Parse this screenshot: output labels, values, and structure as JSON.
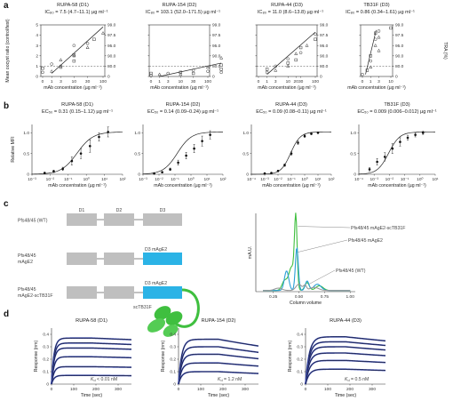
{
  "panel_labels": [
    "a",
    "b",
    "c",
    "d"
  ],
  "panel_a": {
    "ylabel": "Mean oocyst ratio (control/test)",
    "ylabel_right": "TRA (%)",
    "xlabel": "mAb concentration (µg ml⁻¹)",
    "charts": [
      {
        "title": "RUPA-58 (D1)",
        "subtitle": "IC₈₀ = 7.5 (4.7–11.1) µg ml⁻¹",
        "x_ticks": [
          "0",
          "1",
          "3",
          "10",
          "30",
          "100"
        ],
        "x_tickvals": [
          0,
          1,
          3,
          10,
          30,
          100
        ],
        "y_ticks": [
          "0",
          "1",
          "2",
          "3",
          "4",
          "5"
        ],
        "y_right_ticks": [
          "0",
          "80.0",
          "90.0",
          "95.0",
          "97.5",
          "99.0"
        ],
        "threshold": 1,
        "fit_x": [
          1,
          100
        ],
        "fit_y": [
          0.3,
          4.8
        ],
        "points": [
          [
            0,
            0.4
          ],
          [
            0,
            0.8
          ],
          [
            1,
            0.5
          ],
          [
            1,
            1.2
          ],
          [
            3,
            0.9
          ],
          [
            3,
            1.6
          ],
          [
            3,
            1.0
          ],
          [
            10,
            1.5
          ],
          [
            10,
            2.0
          ],
          [
            10,
            3.0
          ],
          [
            10,
            2.1
          ],
          [
            30,
            2.8
          ],
          [
            30,
            3.2
          ],
          [
            50,
            3.6
          ],
          [
            100,
            4.2
          ]
        ]
      },
      {
        "title": "RUPA-154 (D2)",
        "subtitle": "IC₈₀ = 103.1 (52.0–171.5) µg ml⁻¹",
        "x_ticks": [
          "0",
          "1",
          "3",
          "10",
          "30",
          "100"
        ],
        "x_tickvals": [
          0,
          1,
          3,
          10,
          30,
          100
        ],
        "y_ticks": [
          "0",
          "1",
          "2",
          "3",
          "4",
          "5"
        ],
        "y_right_ticks": [
          "0",
          "80.0",
          "90.0",
          "95.0",
          "97.5",
          "99.0"
        ],
        "threshold": 1,
        "fit_x": [
          1,
          300
        ],
        "fit_y": [
          0.0,
          1.3
        ],
        "points": [
          [
            0,
            0.1
          ],
          [
            0,
            0.3
          ],
          [
            1,
            0.2
          ],
          [
            3,
            0.3
          ],
          [
            10,
            0.4
          ],
          [
            10,
            0.2
          ],
          [
            30,
            0.6
          ],
          [
            30,
            0.3
          ],
          [
            100,
            0.9
          ],
          [
            100,
            0.5
          ],
          [
            300,
            1.1
          ],
          [
            300,
            1.8
          ],
          [
            300,
            0.4
          ],
          [
            300,
            0.7
          ]
        ]
      },
      {
        "title": "RUPA-44 (D3)",
        "subtitle": "IC₈₀ = 11.0 (8.6–13.8) µg ml⁻¹",
        "x_ticks": [
          "0",
          "1",
          "3",
          "10",
          "20",
          "30",
          "100"
        ],
        "x_tickvals": [
          0,
          1,
          3,
          10,
          20,
          30,
          100
        ],
        "y_ticks": [
          "0",
          "1",
          "2",
          "3",
          "4",
          "5"
        ],
        "y_right_ticks": [
          "0",
          "80.0",
          "90.0",
          "95.0",
          "97.5",
          "99.0"
        ],
        "threshold": 1,
        "fit_x": [
          1,
          100
        ],
        "fit_y": [
          0.2,
          4.3
        ],
        "points": [
          [
            1,
            0.4
          ],
          [
            1,
            0.7
          ],
          [
            3,
            0.6
          ],
          [
            3,
            1.0
          ],
          [
            10,
            1.3
          ],
          [
            10,
            1.0
          ],
          [
            10,
            1.7
          ],
          [
            20,
            1.6
          ],
          [
            20,
            2.2
          ],
          [
            30,
            2.3
          ],
          [
            30,
            2.8
          ],
          [
            50,
            3.0
          ],
          [
            100,
            4.1
          ],
          [
            100,
            3.6
          ]
        ]
      },
      {
        "title": "TB31F (D3)",
        "subtitle": "IC₈₀ = 0.86 (0.34–1.61) µg ml⁻¹",
        "x_ticks": [
          "0",
          "1",
          "3",
          "10"
        ],
        "x_tickvals": [
          0,
          1,
          3,
          10
        ],
        "y_ticks": [
          "0",
          "1",
          "2",
          "3",
          "4",
          "5"
        ],
        "y_right_ticks": [
          "0",
          "80.0",
          "90.0",
          "95.0",
          "97.5",
          "99.0"
        ],
        "threshold": 1,
        "fit_x": [
          0.3,
          2.2
        ],
        "fit_y": [
          0.2,
          4.5
        ],
        "points": [
          [
            0,
            0.2
          ],
          [
            0.5,
            0.6
          ],
          [
            1,
            0.9
          ],
          [
            1,
            1.5
          ],
          [
            1,
            2.0
          ],
          [
            2,
            3.0
          ],
          [
            2,
            3.6
          ],
          [
            2,
            4.2
          ],
          [
            3,
            3.8
          ],
          [
            3,
            4.4
          ],
          [
            10,
            4.7
          ],
          [
            3,
            2.5
          ]
        ]
      }
    ]
  },
  "panel_b": {
    "ylabel": "Relative MFI",
    "xlabel": "mAb concentration (µg ml⁻¹)",
    "y_ticks": [
      "0",
      "0.5",
      "1.0"
    ],
    "charts": [
      {
        "title": "RUPA-58 (D1)",
        "subtitle": "EC₅₀ = 0.31 (0.15–1.12) µg ml⁻¹",
        "x_ticks": [
          "10⁻³",
          "10⁻²",
          "10⁻¹",
          "10⁰",
          "10¹",
          "10²"
        ],
        "x_log": [
          -3,
          -2,
          -1,
          0,
          1,
          2
        ],
        "ec50_log": -0.51,
        "hill": 1.0,
        "points": [
          [
            -2.3,
            0.03
          ],
          [
            -1.8,
            0.07
          ],
          [
            -1.3,
            0.13
          ],
          [
            -0.8,
            0.32
          ],
          [
            -0.3,
            0.5
          ],
          [
            0.2,
            0.68
          ],
          [
            0.7,
            0.9
          ],
          [
            1.2,
            1.02
          ]
        ],
        "errors": [
          0.02,
          0.03,
          0.04,
          0.1,
          0.12,
          0.15,
          0.1,
          0.12
        ]
      },
      {
        "title": "RUPA-154 (D2)",
        "subtitle": "EC₅₀ = 0.14 (0.09–0.24) µg ml⁻¹",
        "x_ticks": [
          "10⁻³",
          "10⁻²",
          "10⁻¹",
          "10⁰",
          "10¹",
          "10²"
        ],
        "x_log": [
          -3,
          -2,
          -1,
          0,
          1,
          2
        ],
        "ec50_log": -0.85,
        "hill": 1.0,
        "points": [
          [
            -2.3,
            0.02
          ],
          [
            -1.8,
            0.05
          ],
          [
            -1.3,
            0.12
          ],
          [
            -0.8,
            0.28
          ],
          [
            -0.3,
            0.45
          ],
          [
            0.2,
            0.62
          ],
          [
            0.7,
            0.8
          ],
          [
            1.2,
            0.95
          ]
        ],
        "errors": [
          0.02,
          0.02,
          0.03,
          0.06,
          0.08,
          0.1,
          0.12,
          0.1
        ]
      },
      {
        "title": "RUPA-44 (D3)",
        "subtitle": "EC₅₀ = 0.09 (0.08–0.11) µg ml⁻¹",
        "x_ticks": [
          "10⁻⁴",
          "10⁻³",
          "10⁻²",
          "10⁻¹",
          "10⁰",
          "10¹",
          "10²"
        ],
        "x_log": [
          -4,
          -3,
          -2,
          -1,
          0,
          1,
          2
        ],
        "ec50_log": -1.05,
        "hill": 1.2,
        "points": [
          [
            -3.0,
            0.02
          ],
          [
            -2.5,
            0.03
          ],
          [
            -2.0,
            0.08
          ],
          [
            -1.5,
            0.22
          ],
          [
            -1.0,
            0.5
          ],
          [
            -0.5,
            0.76
          ],
          [
            0.0,
            0.92
          ],
          [
            0.5,
            0.98
          ],
          [
            1.0,
            1.0
          ]
        ],
        "errors": [
          0.01,
          0.01,
          0.02,
          0.03,
          0.04,
          0.04,
          0.03,
          0.03,
          0.02
        ]
      },
      {
        "title": "TB31F (D3)",
        "subtitle": "EC₅₀ = 0.009 (0.006–0.012) µg ml⁻¹",
        "x_ticks": [
          "10⁻⁴",
          "10⁻³",
          "10⁻²",
          "10⁻¹",
          "10⁰",
          "10¹"
        ],
        "x_log": [
          -4,
          -3,
          -2,
          -1,
          0,
          1
        ],
        "ec50_log": -2.05,
        "hill": 1.2,
        "points": [
          [
            -3.3,
            0.12
          ],
          [
            -2.8,
            0.3
          ],
          [
            -2.3,
            0.42
          ],
          [
            -1.8,
            0.62
          ],
          [
            -1.3,
            0.78
          ],
          [
            -0.8,
            0.88
          ],
          [
            -0.3,
            0.95
          ],
          [
            0.2,
            1.0
          ]
        ],
        "errors": [
          0.04,
          0.08,
          0.1,
          0.12,
          0.1,
          0.06,
          0.05,
          0.04
        ]
      }
    ]
  },
  "panel_c": {
    "constructs": [
      {
        "label": "Pfs48/45 (WT)",
        "domains": [
          "D1",
          "D2",
          "D3"
        ],
        "colored": ""
      },
      {
        "label": "Pfs48/45 mAgE2",
        "domains": [
          "",
          "",
          "D3 mAgE2"
        ],
        "colored": "D3 mAgE2"
      },
      {
        "label": "Pfs48/45 mAgE2-scTB31F",
        "domains": [
          "",
          "",
          "D3 mAgE2"
        ],
        "colored": "D3 mAgE2",
        "fab": "scTB31F"
      }
    ],
    "sec": {
      "ylabel": "mA.U.",
      "xlabel": "Column volume",
      "x_ticks": [
        "0.25",
        "0.50",
        "0.75",
        "1.00"
      ],
      "series": [
        {
          "name": "Pfs48/45 mAgE2-scTB31F",
          "color": "#3fbf3f"
        },
        {
          "name": "Pfs48/45 mAgE2",
          "color": "#2a9fd6"
        },
        {
          "name": "Pfs48/45 (WT)",
          "color": "#999999"
        }
      ]
    }
  },
  "panel_d": {
    "ylabel": "Response (nm)",
    "xlabel": "Time (sec)",
    "charts": [
      {
        "title": "RUPA-58 (D1)",
        "kd_label": "K",
        "kd_sub": "d",
        "kd_value": " < 0.01 nM",
        "y_ticks": [
          "0",
          "0.1",
          "0.2",
          "0.3",
          "0.4"
        ],
        "ymax": 0.45,
        "x_ticks": [
          "0",
          "100",
          "200",
          "300"
        ],
        "plateaus": [
          0.37,
          0.33,
          0.29,
          0.22,
          0.14,
          0.07
        ]
      },
      {
        "title": "RUPA-154 (D2)",
        "kd_label": "K",
        "kd_sub": "d",
        "kd_value": " = 1.2 nM",
        "y_ticks": [
          "0",
          "0.1",
          "0.2",
          "0.3",
          "0.4"
        ],
        "ymax": 0.45,
        "x_ticks": [
          "0",
          "100",
          "200",
          "300"
        ],
        "plateaus": [
          0.36,
          0.3,
          0.24,
          0.17,
          0.1
        ]
      },
      {
        "title": "RUPA-44 (D3)",
        "kd_label": "K",
        "kd_sub": "d",
        "kd_value": " = 0.5 nM",
        "y_ticks": [
          "0",
          "0.1",
          "0.2",
          "0.3",
          "0.4"
        ],
        "ymax": 0.45,
        "x_ticks": [
          "0",
          "100",
          "200",
          "300"
        ],
        "plateaus": [
          0.38,
          0.34,
          0.3,
          0.25,
          0.19,
          0.12
        ]
      }
    ]
  }
}
